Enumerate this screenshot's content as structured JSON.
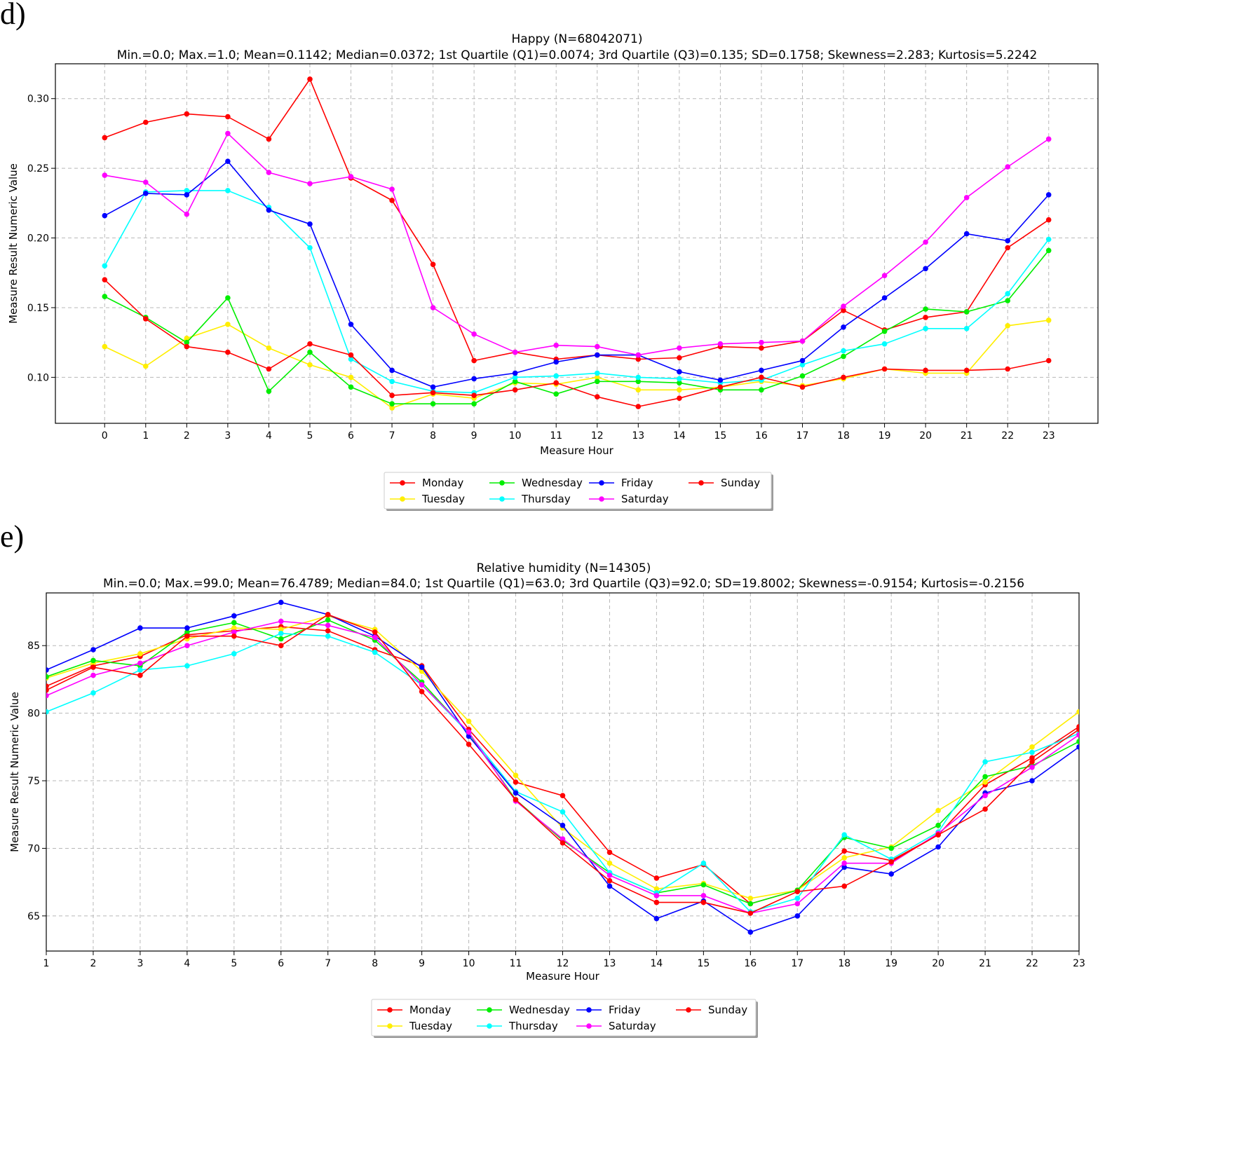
{
  "figure": {
    "panels": [
      "d)",
      "e)"
    ]
  },
  "legend_colors": {
    "Monday": "#ff0000",
    "Tuesday": "#ffee00",
    "Wednesday": "#00ee00",
    "Thursday": "#00ffff",
    "Friday": "#0000ff",
    "Saturday": "#ff00ff",
    "Sunday": "#ff0000"
  },
  "chart_data": [
    {
      "type": "line",
      "panel_label": "d)",
      "title": "Happy (N=68042071)",
      "subtitle": "Min.=0.0; Max.=1.0; Mean=0.1142; Median=0.0372; 1st Quartile (Q1)=0.0074; 3rd Quartile (Q3)=0.135; SD=0.1758; Skewness=2.283; Kurtosis=5.2242",
      "xlabel": "Measure Hour",
      "ylabel": "Measure Result Numeric Value",
      "xlim": [
        -1.2,
        24.2
      ],
      "ylim": [
        0.067,
        0.325
      ],
      "x": [
        0,
        1,
        2,
        3,
        4,
        5,
        6,
        7,
        8,
        9,
        10,
        11,
        12,
        13,
        14,
        15,
        16,
        17,
        18,
        19,
        20,
        21,
        22,
        23
      ],
      "x_ticks": [
        "0",
        "1",
        "2",
        "3",
        "4",
        "5",
        "6",
        "7",
        "8",
        "9",
        "10",
        "11",
        "12",
        "13",
        "14",
        "15",
        "16",
        "17",
        "18",
        "19",
        "20",
        "21",
        "22",
        "23"
      ],
      "y_ticks": [
        0.1,
        0.15,
        0.2,
        0.25,
        0.3
      ],
      "y_tick_labels": [
        "0.10",
        "0.15",
        "0.20",
        "0.25",
        "0.30"
      ],
      "grid": true,
      "legend_position": "below",
      "series": [
        {
          "name": "Monday",
          "color": "#ff0000",
          "values": [
            0.272,
            0.283,
            0.289,
            0.287,
            0.271,
            0.314,
            0.243,
            0.227,
            0.181,
            0.112,
            0.118,
            0.113,
            0.116,
            0.113,
            0.114,
            0.122,
            0.121,
            0.126,
            0.148,
            0.134,
            0.143,
            0.147,
            0.193,
            0.213
          ]
        },
        {
          "name": "Tuesday",
          "color": "#ffee00",
          "values": [
            0.122,
            0.108,
            0.128,
            0.138,
            0.121,
            0.109,
            0.1,
            0.078,
            0.088,
            0.085,
            0.096,
            0.095,
            0.1,
            0.091,
            0.091,
            0.093,
            0.097,
            0.094,
            0.099,
            0.106,
            0.103,
            0.103,
            0.137,
            0.141
          ]
        },
        {
          "name": "Wednesday",
          "color": "#00ee00",
          "values": [
            0.158,
            0.143,
            0.125,
            0.157,
            0.09,
            0.118,
            0.093,
            0.081,
            0.081,
            0.081,
            0.097,
            0.088,
            0.097,
            0.097,
            0.096,
            0.091,
            0.091,
            0.101,
            0.115,
            0.133,
            0.149,
            0.147,
            0.155,
            0.191
          ]
        },
        {
          "name": "Thursday",
          "color": "#00ffff",
          "values": [
            0.18,
            0.233,
            0.234,
            0.234,
            0.222,
            0.193,
            0.113,
            0.097,
            0.09,
            0.089,
            0.1,
            0.101,
            0.103,
            0.1,
            0.099,
            0.096,
            0.098,
            0.109,
            0.119,
            0.124,
            0.135,
            0.135,
            0.16,
            0.199
          ]
        },
        {
          "name": "Friday",
          "color": "#0000ff",
          "values": [
            0.216,
            0.232,
            0.231,
            0.255,
            0.22,
            0.21,
            0.138,
            0.105,
            0.093,
            0.099,
            0.103,
            0.111,
            0.116,
            0.116,
            0.104,
            0.098,
            0.105,
            0.112,
            0.136,
            0.157,
            0.178,
            0.203,
            0.198,
            0.231
          ]
        },
        {
          "name": "Saturday",
          "color": "#ff00ff",
          "values": [
            0.245,
            0.24,
            0.217,
            0.275,
            0.247,
            0.239,
            0.244,
            0.235,
            0.15,
            0.131,
            0.118,
            0.123,
            0.122,
            0.116,
            0.121,
            0.124,
            0.125,
            0.126,
            0.151,
            0.173,
            0.197,
            0.229,
            0.251,
            0.271
          ]
        },
        {
          "name": "Sunday",
          "color": "#ff0000",
          "values": [
            0.17,
            0.142,
            0.122,
            0.118,
            0.106,
            0.124,
            0.116,
            0.087,
            0.089,
            0.087,
            0.091,
            0.096,
            0.086,
            0.079,
            0.085,
            0.093,
            0.1,
            0.093,
            0.1,
            0.106,
            0.105,
            0.105,
            0.106,
            0.112
          ]
        }
      ]
    },
    {
      "type": "line",
      "panel_label": "e)",
      "title": "Relative humidity (N=14305)",
      "subtitle": "Min.=0.0; Max.=99.0; Mean=76.4789; Median=84.0; 1st Quartile (Q1)=63.0; 3rd Quartile (Q3)=92.0; SD=19.8002; Skewness=-0.9154; Kurtosis=-0.2156",
      "xlabel": "Measure Hour",
      "ylabel": "Measure Result Numeric Value",
      "xlim": [
        1,
        23
      ],
      "ylim": [
        62.4,
        88.9
      ],
      "x": [
        1,
        2,
        3,
        4,
        5,
        6,
        7,
        8,
        9,
        10,
        11,
        12,
        13,
        14,
        15,
        16,
        17,
        18,
        19,
        20,
        21,
        22,
        23
      ],
      "x_ticks": [
        "1",
        "2",
        "3",
        "4",
        "5",
        "6",
        "7",
        "8",
        "9",
        "10",
        "11",
        "12",
        "13",
        "14",
        "15",
        "16",
        "17",
        "18",
        "19",
        "20",
        "21",
        "22",
        "23"
      ],
      "y_ticks": [
        65,
        70,
        75,
        80,
        85
      ],
      "y_tick_labels": [
        "65",
        "70",
        "75",
        "80",
        "85"
      ],
      "grid": true,
      "legend_position": "below",
      "series": [
        {
          "name": "Monday",
          "color": "#ff0000",
          "values": [
            82.0,
            83.5,
            84.2,
            85.8,
            86.1,
            86.4,
            86.1,
            84.7,
            83.5,
            78.8,
            74.9,
            73.9,
            69.7,
            67.8,
            68.8,
            65.9,
            66.9,
            69.8,
            69.1,
            71.0,
            74.7,
            76.7,
            79.0
          ]
        },
        {
          "name": "Tuesday",
          "color": "#ffee00",
          "values": [
            82.6,
            83.7,
            84.4,
            85.5,
            86.3,
            86.2,
            87.2,
            86.2,
            83.1,
            79.4,
            75.4,
            71.5,
            68.9,
            67.0,
            67.4,
            66.3,
            66.9,
            69.3,
            70.1,
            72.8,
            74.9,
            77.5,
            80.1
          ]
        },
        {
          "name": "Wednesday",
          "color": "#00ee00",
          "values": [
            82.7,
            83.9,
            83.5,
            86.0,
            86.7,
            85.5,
            86.9,
            85.4,
            82.3,
            78.5,
            73.6,
            70.6,
            68.2,
            66.7,
            67.3,
            65.9,
            66.9,
            70.8,
            70.0,
            71.7,
            75.3,
            76.1,
            77.9
          ]
        },
        {
          "name": "Thursday",
          "color": "#00ffff",
          "values": [
            80.1,
            81.5,
            83.2,
            83.5,
            84.4,
            85.9,
            85.7,
            84.5,
            82.1,
            78.5,
            74.2,
            72.7,
            68.2,
            66.7,
            68.9,
            65.3,
            66.3,
            71.0,
            69.2,
            71.2,
            76.4,
            77.1,
            78.5
          ]
        },
        {
          "name": "Friday",
          "color": "#0000ff",
          "values": [
            83.2,
            84.7,
            86.3,
            86.3,
            87.2,
            88.2,
            87.3,
            85.7,
            83.4,
            78.3,
            74.1,
            71.7,
            67.2,
            64.8,
            66.1,
            63.8,
            65.0,
            68.6,
            68.1,
            70.1,
            74.1,
            75.0,
            77.5
          ]
        },
        {
          "name": "Saturday",
          "color": "#ff00ff",
          "values": [
            81.3,
            82.8,
            83.7,
            85.0,
            86.0,
            86.8,
            86.5,
            85.6,
            82.1,
            78.6,
            73.5,
            70.7,
            68.0,
            66.5,
            66.5,
            65.2,
            65.9,
            68.9,
            68.9,
            71.1,
            73.9,
            76.0,
            78.4
          ]
        },
        {
          "name": "Sunday",
          "color": "#ff0000",
          "values": [
            81.7,
            83.4,
            82.8,
            85.7,
            85.7,
            85.0,
            87.3,
            86.0,
            81.6,
            77.7,
            73.6,
            70.4,
            67.6,
            66.0,
            66.0,
            65.2,
            66.8,
            67.2,
            69.0,
            71.0,
            72.9,
            76.4,
            78.8
          ]
        }
      ]
    }
  ]
}
